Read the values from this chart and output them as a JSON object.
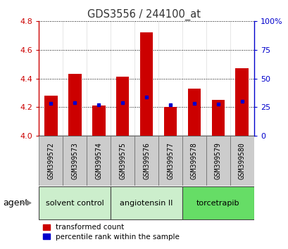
{
  "title": "GDS3556 / 244100_at",
  "samples": [
    "GSM399572",
    "GSM399573",
    "GSM399574",
    "GSM399575",
    "GSM399576",
    "GSM399577",
    "GSM399578",
    "GSM399579",
    "GSM399580"
  ],
  "bar_heights": [
    4.28,
    4.43,
    4.21,
    4.41,
    4.72,
    4.2,
    4.33,
    4.25,
    4.47
  ],
  "blue_dots": [
    4.225,
    4.233,
    4.215,
    4.232,
    4.27,
    4.215,
    4.228,
    4.222,
    4.24
  ],
  "ylim_left": [
    4.0,
    4.8
  ],
  "ylim_right": [
    0,
    100
  ],
  "yticks_left": [
    4.0,
    4.2,
    4.4,
    4.6,
    4.8
  ],
  "yticks_right": [
    0,
    25,
    50,
    75,
    100
  ],
  "ytick_labels_right": [
    "0",
    "25",
    "50",
    "75",
    "100%"
  ],
  "bar_color": "#cc0000",
  "blue_color": "#0000cc",
  "agent_groups": [
    {
      "label": "solvent control",
      "start": 0,
      "end": 3,
      "color": "#cceecc"
    },
    {
      "label": "angiotensin II",
      "start": 3,
      "end": 6,
      "color": "#cceecc"
    },
    {
      "label": "torcetrapib",
      "start": 6,
      "end": 9,
      "color": "#66dd66"
    }
  ],
  "legend_entries": [
    "transformed count",
    "percentile rank within the sample"
  ],
  "xlabel_agent": "agent",
  "left_tick_color": "#cc0000",
  "right_tick_color": "#0000cc",
  "bar_width": 0.55,
  "base_value": 4.0,
  "tick_bg_color": "#cccccc",
  "spine_color": "#888888"
}
